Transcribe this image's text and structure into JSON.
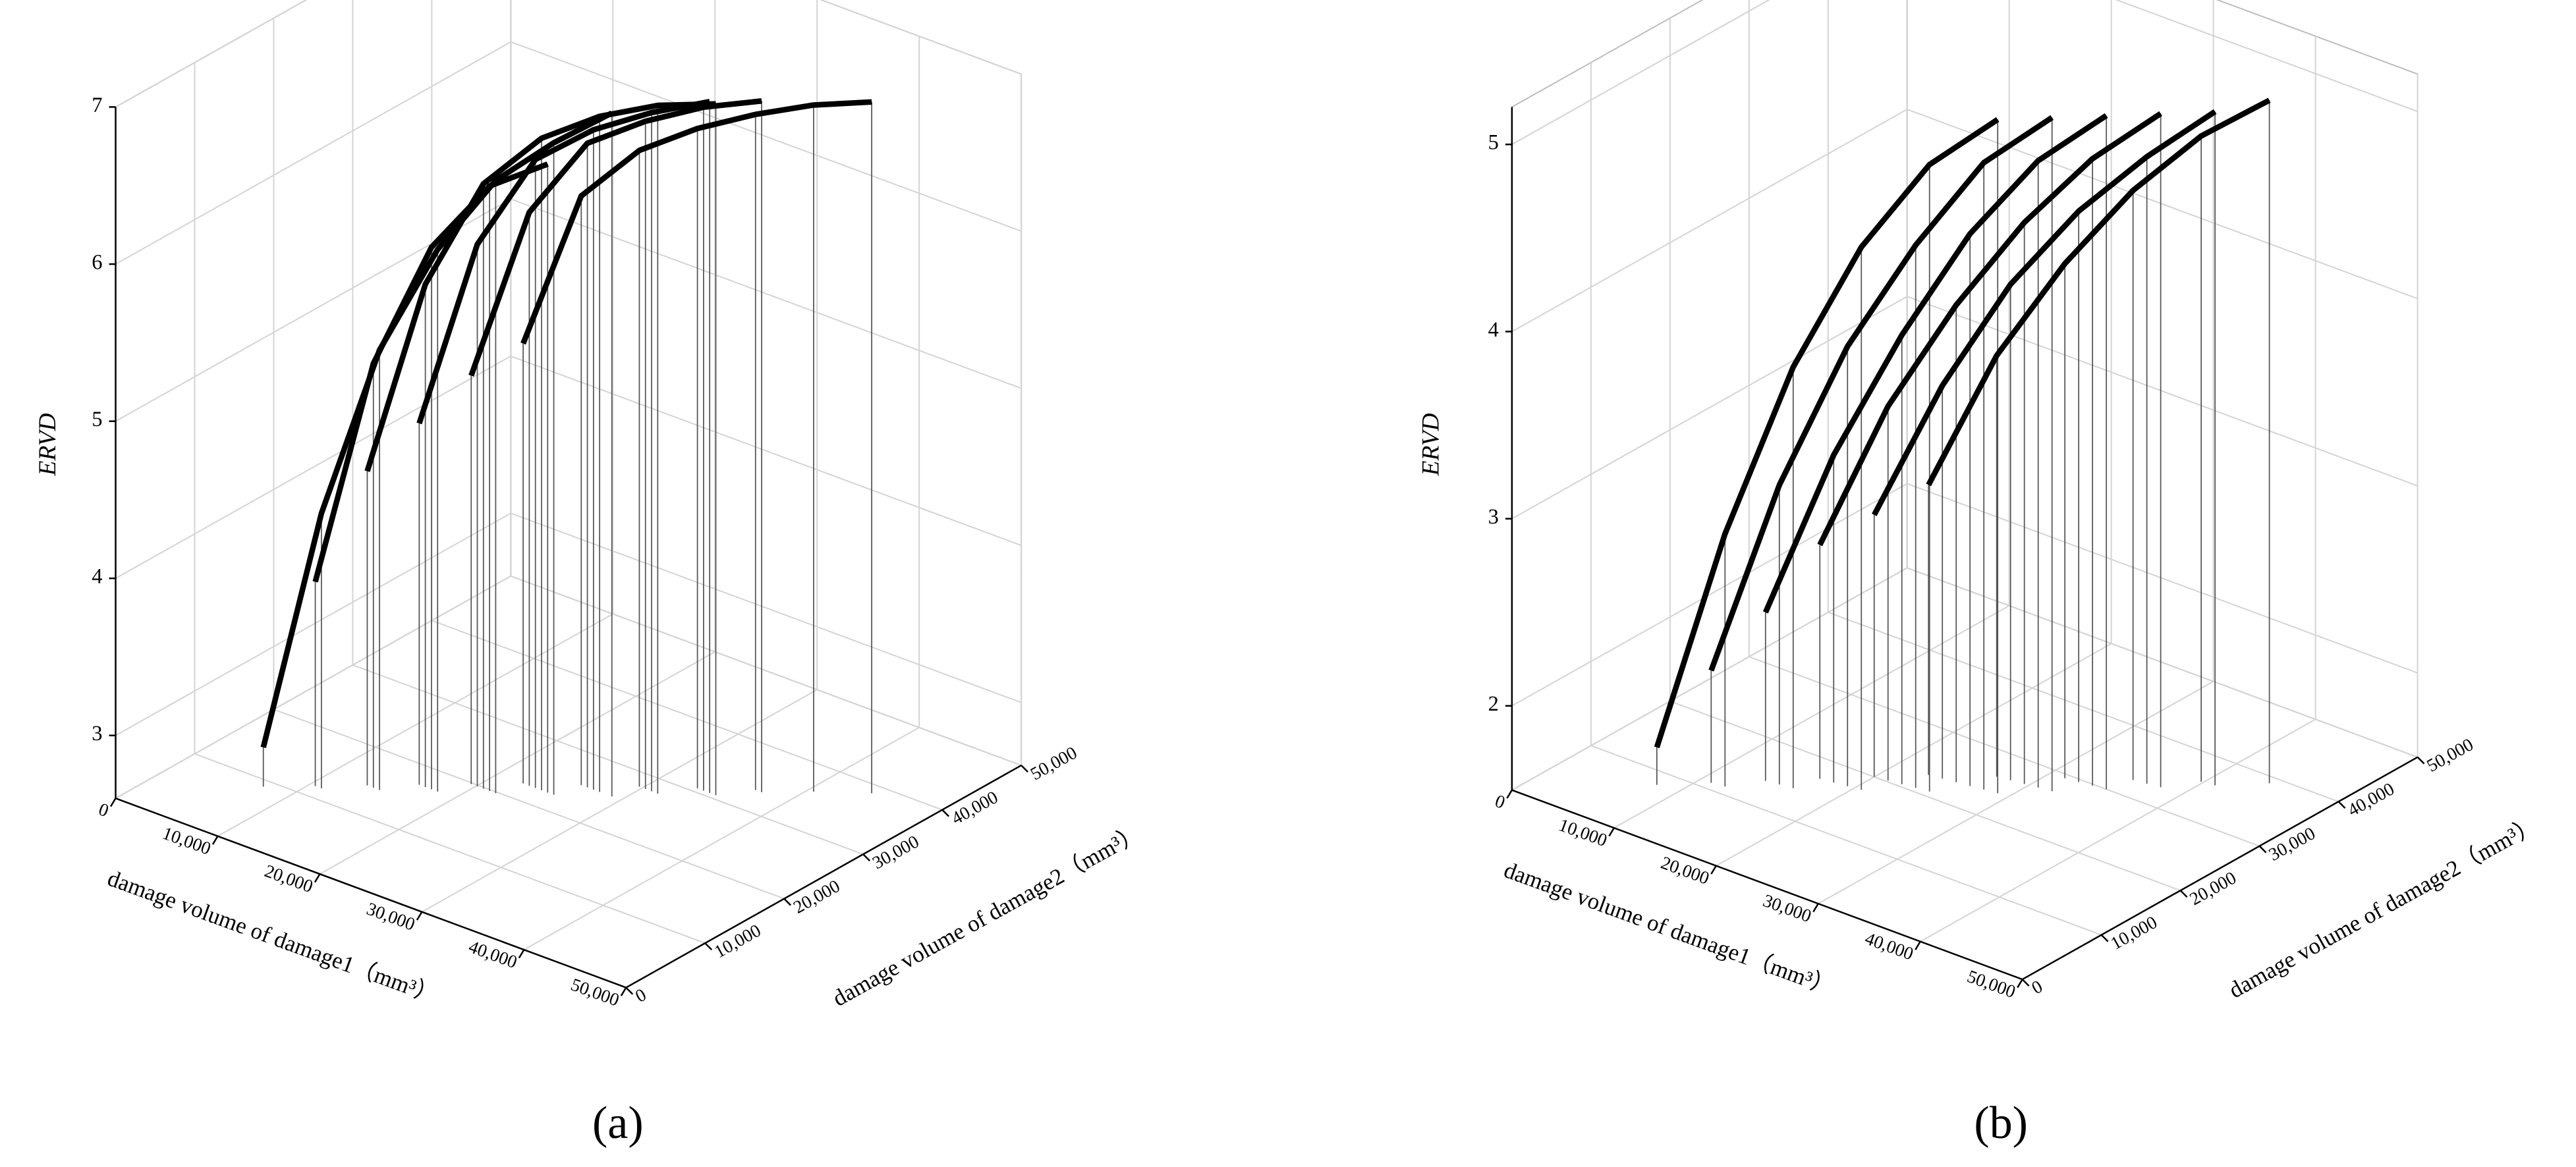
{
  "chart_data": [
    {
      "type": "line3d",
      "caption": "(a)",
      "xlabel": "damage volume of damage1（mm³）",
      "ylabel": "damage volume of damage2（mm³）",
      "zlabel": "ERVD",
      "xlim": [
        0,
        50000
      ],
      "ylim": [
        0,
        50000
      ],
      "zlim": [
        2.6,
        7
      ],
      "xticks": [
        0,
        {
          "value": 10000,
          "label": "10,000"
        },
        {
          "value": 20000,
          "label": "20,000"
        },
        {
          "value": 30000,
          "label": "30,000"
        },
        {
          "value": 40000,
          "label": "40,000"
        },
        {
          "value": 50000,
          "label": "50,000"
        }
      ],
      "yticks": [
        0,
        {
          "value": 10000,
          "label": "10,000"
        },
        {
          "value": 20000,
          "label": "20,000"
        },
        {
          "value": 30000,
          "label": "30,000"
        },
        {
          "value": 40000,
          "label": "40,000"
        },
        {
          "value": 50000,
          "label": "50,000"
        }
      ],
      "zticks": [
        3,
        4,
        5,
        6,
        7
      ],
      "grid": true,
      "color": "#000000",
      "series": [
        {
          "x": [
            7500,
            11100,
            14700,
            18300,
            21900,
            25500,
            29100
          ],
          "y": [
            9000,
            11700,
            14400,
            17100,
            19800,
            22500,
            25200
          ],
          "values": [
            2.85,
            4.35,
            5.4,
            6.05,
            6.5,
            6.75,
            6.95
          ]
        },
        {
          "x": [
            10500,
            14100,
            17700,
            21300,
            24900
          ],
          "y": [
            11700,
            14400,
            17100,
            19800,
            22500
          ],
          "values": [
            3.9,
            5.3,
            6.05,
            6.45,
            6.6
          ]
        },
        {
          "x": [
            13500,
            17100,
            20700,
            24300,
            27900,
            31500,
            35100
          ],
          "y": [
            14400,
            17100,
            19800,
            22500,
            25200,
            27900,
            30600
          ],
          "values": [
            4.6,
            5.8,
            6.45,
            6.75,
            6.9,
            6.98,
            7.0
          ]
        },
        {
          "x": [
            16500,
            20100,
            23700,
            27300,
            30900,
            34500
          ],
          "y": [
            17100,
            19800,
            22500,
            25200,
            27900,
            30600
          ],
          "values": [
            4.9,
            6.05,
            6.6,
            6.8,
            6.92,
            7.0
          ]
        },
        {
          "x": [
            19500,
            23100,
            26700,
            30300,
            33900,
            37500
          ],
          "y": [
            19800,
            22500,
            25200,
            27900,
            30600,
            33300
          ],
          "values": [
            5.2,
            6.25,
            6.7,
            6.85,
            6.95,
            7.0
          ]
        },
        {
          "x": [
            22500,
            26100,
            29700,
            33300,
            36900,
            40500,
            44100
          ],
          "y": [
            22500,
            25200,
            27900,
            30600,
            33300,
            36000,
            38700
          ],
          "values": [
            5.4,
            6.35,
            6.65,
            6.8,
            6.9,
            6.97,
            7.0
          ]
        }
      ]
    },
    {
      "type": "line3d",
      "caption": "(b)",
      "xlabel": "damage volume of damage1（mm³）",
      "ylabel": "damage volume of damage2（mm³）",
      "zlabel": "ERVD",
      "xlim": [
        0,
        50000
      ],
      "ylim": [
        0,
        50000
      ],
      "zlim": [
        1.55,
        5.2
      ],
      "xticks": [
        0,
        {
          "value": 10000,
          "label": "10,000"
        },
        {
          "value": 20000,
          "label": "20,000"
        },
        {
          "value": 30000,
          "label": "30,000"
        },
        {
          "value": 40000,
          "label": "40,000"
        },
        {
          "value": 50000,
          "label": "50,000"
        }
      ],
      "yticks": [
        0,
        {
          "value": 10000,
          "label": "10,000"
        },
        {
          "value": 20000,
          "label": "20,000"
        },
        {
          "value": 30000,
          "label": "30,000"
        },
        {
          "value": 40000,
          "label": "40,000"
        },
        {
          "value": 50000,
          "label": "50,000"
        }
      ],
      "zticks": [
        2,
        3,
        4,
        5
      ],
      "grid": true,
      "color": "#000000",
      "series": [
        {
          "x": [
            8000,
            12200,
            16400,
            20600,
            24800,
            29000
          ],
          "y": [
            8000,
            11200,
            14400,
            17600,
            20800,
            24000
          ],
          "values": [
            1.75,
            2.9,
            3.8,
            4.45,
            4.9,
            5.15
          ]
        },
        {
          "x": [
            11000,
            15200,
            19400,
            23600,
            27800,
            32000
          ],
          "y": [
            11000,
            14200,
            17400,
            20600,
            23800,
            27000
          ],
          "values": [
            2.15,
            3.15,
            3.9,
            4.45,
            4.9,
            5.15
          ]
        },
        {
          "x": [
            14000,
            18200,
            22400,
            26600,
            30800,
            35000
          ],
          "y": [
            14000,
            17200,
            20400,
            23600,
            26800,
            30000
          ],
          "values": [
            2.45,
            3.3,
            3.95,
            4.5,
            4.9,
            5.15
          ]
        },
        {
          "x": [
            17000,
            21200,
            25400,
            29600,
            33800,
            38000
          ],
          "y": [
            17000,
            20200,
            23400,
            26600,
            29800,
            33000
          ],
          "values": [
            2.8,
            3.55,
            4.1,
            4.55,
            4.9,
            5.15
          ]
        },
        {
          "x": [
            20000,
            24200,
            28400,
            32600,
            36800,
            41000
          ],
          "y": [
            20000,
            23200,
            26400,
            29600,
            32800,
            36000
          ],
          "values": [
            2.95,
            3.65,
            4.2,
            4.6,
            4.9,
            5.15
          ]
        },
        {
          "x": [
            23000,
            27200,
            31400,
            35600,
            39800,
            44000
          ],
          "y": [
            23000,
            26200,
            29400,
            32600,
            35800,
            39000
          ],
          "values": [
            3.1,
            3.8,
            4.3,
            4.7,
            5.0,
            5.2
          ]
        }
      ]
    }
  ]
}
